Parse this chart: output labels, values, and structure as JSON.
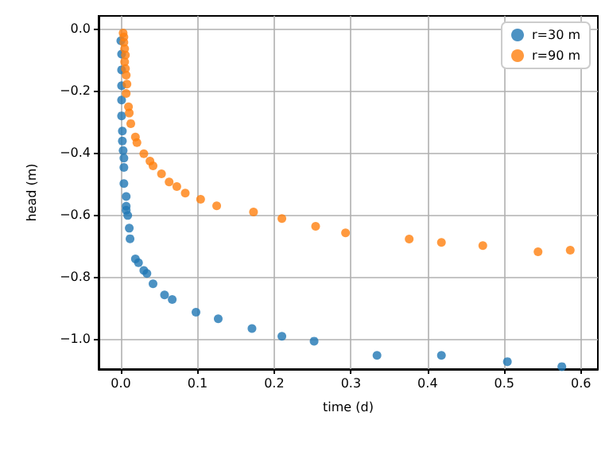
{
  "chart_data": {
    "type": "scatter",
    "xlabel": "time (d)",
    "ylabel": "head (m)",
    "xlim": [
      -0.029,
      0.622
    ],
    "ylim": [
      -1.097,
      0.041
    ],
    "xticks": [
      {
        "value": 0,
        "label": "0.0"
      },
      0.1,
      0.2,
      0.3,
      0.4,
      0.5,
      0.6
    ],
    "yticks": [
      {
        "value": -1,
        "label": "−1.0"
      },
      {
        "value": -0.8,
        "label": "−0.8"
      },
      {
        "value": -0.6,
        "label": "−0.6"
      },
      {
        "value": -0.4,
        "label": "−0.4"
      },
      {
        "value": -0.2,
        "label": "−0.2"
      },
      {
        "value": 0,
        "label": "0.0"
      }
    ],
    "grid": true,
    "legend": "top right",
    "marker": "circle",
    "series": [
      {
        "name": "r=30 m",
        "color": "#1f77b4",
        "x": [
          0.0,
          0.001,
          0.001,
          0.001,
          0.001,
          0.001,
          0.002,
          0.002,
          0.003,
          0.004,
          0.004,
          0.004,
          0.007,
          0.007,
          0.007,
          0.009,
          0.011,
          0.012,
          0.019,
          0.023,
          0.03,
          0.034,
          0.042,
          0.057,
          0.067,
          0.098,
          0.127,
          0.171,
          0.21,
          0.252,
          0.334,
          0.418,
          0.504,
          0.575
        ],
        "values": [
          -0.039,
          -0.082,
          -0.133,
          -0.184,
          -0.23,
          -0.281,
          -0.33,
          -0.362,
          -0.393,
          -0.417,
          -0.447,
          -0.499,
          -0.541,
          -0.572,
          -0.585,
          -0.602,
          -0.643,
          -0.677,
          -0.742,
          -0.754,
          -0.779,
          -0.789,
          -0.822,
          -0.858,
          -0.873,
          -0.914,
          -0.935,
          -0.966,
          -0.991,
          -1.007,
          -1.053,
          -1.053,
          -1.073,
          -1.089
        ]
      },
      {
        "name": "r=90 m",
        "color": "#ff7f0e",
        "x": [
          0.003,
          0.004,
          0.004,
          0.005,
          0.006,
          0.005,
          0.006,
          0.007,
          0.008,
          0.007,
          0.01,
          0.011,
          0.013,
          0.019,
          0.021,
          0.03,
          0.038,
          0.042,
          0.053,
          0.063,
          0.073,
          0.084,
          0.104,
          0.125,
          0.173,
          0.21,
          0.254,
          0.293,
          0.376,
          0.418,
          0.472,
          0.544,
          0.586
        ],
        "values": [
          -0.014,
          -0.027,
          -0.044,
          -0.065,
          -0.085,
          -0.107,
          -0.129,
          -0.15,
          -0.179,
          -0.209,
          -0.252,
          -0.272,
          -0.306,
          -0.349,
          -0.367,
          -0.403,
          -0.427,
          -0.442,
          -0.468,
          -0.494,
          -0.509,
          -0.53,
          -0.55,
          -0.571,
          -0.591,
          -0.612,
          -0.637,
          -0.658,
          -0.678,
          -0.689,
          -0.699,
          -0.719,
          -0.714
        ]
      }
    ]
  }
}
